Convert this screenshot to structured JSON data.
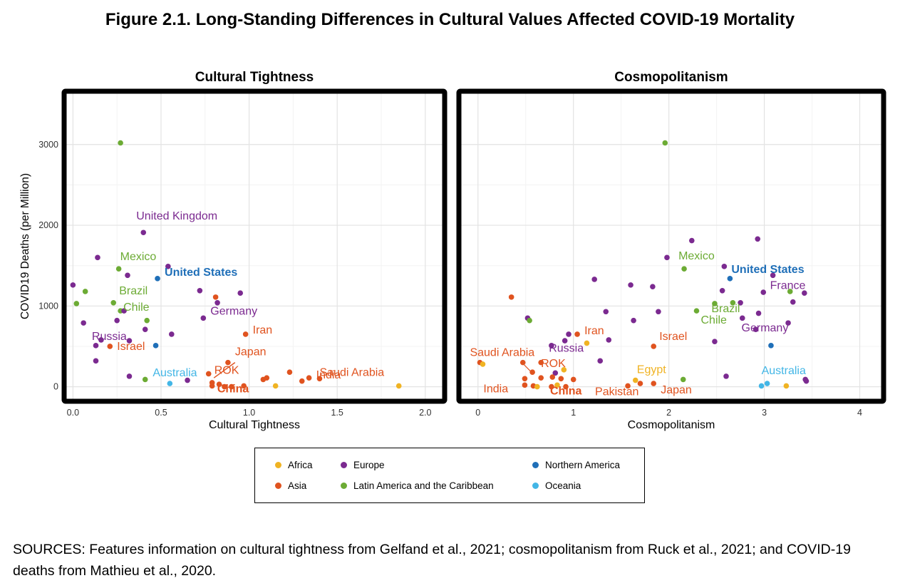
{
  "figure_title": "Figure 2.1. Long-Standing Differences in Cultural Values Affected COVID-19 Mortality",
  "sources": "SOURCES: Features information on cultural tightness from Gelfand et al., 2021; cosmopolitanism from Ruck et al., 2021; and COVID-19 deaths from Mathieu et al., 2020.",
  "colors": {
    "Africa": "#f0b323",
    "Asia": "#e0531f",
    "Europe": "#7b2a90",
    "Northern America": "#1f6fb8",
    "Latin America and the Caribbean": "#6cab34",
    "Oceania": "#43b6e6"
  },
  "legend": [
    {
      "label": "Africa",
      "color": "#f0b323"
    },
    {
      "label": "Europe",
      "color": "#7b2a90"
    },
    {
      "label": "Northern America",
      "color": "#1f6fb8"
    },
    {
      "label": "Asia",
      "color": "#e0531f"
    },
    {
      "label": "Latin America and the Caribbean",
      "color": "#6cab34"
    },
    {
      "label": "Oceania",
      "color": "#43b6e6"
    }
  ],
  "chart_data": [
    {
      "type": "scatter",
      "title": "Cultural Tightness",
      "xlabel": "Cultural Tightness",
      "ylabel": "COVID19 Deaths (per Million)",
      "xlim": [
        -0.05,
        2.11
      ],
      "ylim": [
        -180,
        3660
      ],
      "xticks": [
        0.0,
        0.5,
        1.0,
        1.5,
        2.0
      ],
      "xtick_labels": [
        "0.0",
        "0.5",
        "1.0",
        "1.5",
        "2.0"
      ],
      "yticks": [
        0,
        1000,
        2000,
        3000
      ],
      "ytick_labels": [
        "0",
        "1000",
        "2000",
        "3000"
      ],
      "grid": true,
      "points": [
        {
          "x": 0.27,
          "y": 3020,
          "region": "Latin America and the Caribbean"
        },
        {
          "x": 0.4,
          "y": 1910,
          "region": "Europe",
          "label": "United Kingdom"
        },
        {
          "x": 0.14,
          "y": 1600,
          "region": "Europe"
        },
        {
          "x": 0.26,
          "y": 1460,
          "region": "Latin America and the Caribbean",
          "label": "Mexico"
        },
        {
          "x": 0.54,
          "y": 1490,
          "region": "Europe"
        },
        {
          "x": 0.31,
          "y": 1380,
          "region": "Europe"
        },
        {
          "x": 0.48,
          "y": 1340,
          "region": "Northern America",
          "label": "United States",
          "bold": true
        },
        {
          "x": 0.0,
          "y": 1260,
          "region": "Europe"
        },
        {
          "x": 0.07,
          "y": 1180,
          "region": "Latin America and the Caribbean"
        },
        {
          "x": 0.72,
          "y": 1190,
          "region": "Europe"
        },
        {
          "x": 0.95,
          "y": 1160,
          "region": "Europe"
        },
        {
          "x": 0.81,
          "y": 1110,
          "region": "Asia"
        },
        {
          "x": 0.23,
          "y": 1040,
          "region": "Latin America and the Caribbean",
          "label": "Brazil"
        },
        {
          "x": 0.02,
          "y": 1030,
          "region": "Latin America and the Caribbean"
        },
        {
          "x": 0.82,
          "y": 1040,
          "region": "Europe"
        },
        {
          "x": 0.27,
          "y": 940,
          "region": "Latin America and the Caribbean",
          "label": "Chile"
        },
        {
          "x": 0.29,
          "y": 940,
          "region": "Europe"
        },
        {
          "x": 0.74,
          "y": 850,
          "region": "Europe",
          "label": "Germany"
        },
        {
          "x": 0.25,
          "y": 820,
          "region": "Europe"
        },
        {
          "x": 0.42,
          "y": 820,
          "region": "Latin America and the Caribbean"
        },
        {
          "x": 0.06,
          "y": 790,
          "region": "Europe"
        },
        {
          "x": 0.41,
          "y": 710,
          "region": "Europe"
        },
        {
          "x": 0.98,
          "y": 650,
          "region": "Asia",
          "label": "Iran"
        },
        {
          "x": 0.56,
          "y": 650,
          "region": "Europe"
        },
        {
          "x": 0.32,
          "y": 570,
          "region": "Europe"
        },
        {
          "x": 0.16,
          "y": 580,
          "region": "Europe",
          "label": "Russia"
        },
        {
          "x": 0.13,
          "y": 510,
          "region": "Europe"
        },
        {
          "x": 0.21,
          "y": 500,
          "region": "Asia",
          "label": "Israel"
        },
        {
          "x": 0.47,
          "y": 510,
          "region": "Northern America"
        },
        {
          "x": 0.13,
          "y": 320,
          "region": "Europe"
        },
        {
          "x": 0.88,
          "y": 300,
          "region": "Asia",
          "label": "Japan"
        },
        {
          "x": 1.4,
          "y": 100,
          "region": "Asia",
          "label": "Saudi Arabia"
        },
        {
          "x": 1.23,
          "y": 180,
          "region": "Asia"
        },
        {
          "x": 0.77,
          "y": 160,
          "region": "Asia",
          "label": "ROK"
        },
        {
          "x": 0.32,
          "y": 130,
          "region": "Europe"
        },
        {
          "x": 0.41,
          "y": 90,
          "region": "Latin America and the Caribbean"
        },
        {
          "x": 0.55,
          "y": 40,
          "region": "Oceania",
          "label": "Australia"
        },
        {
          "x": 0.65,
          "y": 80,
          "region": "Europe"
        },
        {
          "x": 1.08,
          "y": 90,
          "region": "Asia"
        },
        {
          "x": 1.1,
          "y": 110,
          "region": "Asia"
        },
        {
          "x": 1.34,
          "y": 110,
          "region": "Asia",
          "label": "India"
        },
        {
          "x": 1.3,
          "y": 70,
          "region": "Asia"
        },
        {
          "x": 0.79,
          "y": 50,
          "region": "Asia"
        },
        {
          "x": 0.79,
          "y": 10,
          "region": "Asia"
        },
        {
          "x": 0.83,
          "y": 30,
          "region": "Asia"
        },
        {
          "x": 0.86,
          "y": 0,
          "region": "Asia"
        },
        {
          "x": 0.9,
          "y": 0,
          "region": "Asia",
          "label": "China",
          "bold": true
        },
        {
          "x": 0.97,
          "y": 10,
          "region": "Asia"
        },
        {
          "x": 1.15,
          "y": 10,
          "region": "Africa"
        },
        {
          "x": 1.85,
          "y": 10,
          "region": "Africa"
        }
      ]
    },
    {
      "type": "scatter",
      "title": "Cosmopolitanism",
      "xlabel": "Cosmopolitanism",
      "ylabel": "",
      "xlim": [
        -0.2,
        4.25
      ],
      "ylim": [
        -180,
        3660
      ],
      "xticks": [
        0,
        1,
        2,
        3,
        4
      ],
      "xtick_labels": [
        "0",
        "1",
        "2",
        "3",
        "4"
      ],
      "yticks": [
        0,
        1000,
        2000,
        3000
      ],
      "ytick_labels": [],
      "grid": true,
      "points": [
        {
          "x": 1.96,
          "y": 3020,
          "region": "Latin America and the Caribbean"
        },
        {
          "x": 2.93,
          "y": 1830,
          "region": "Europe"
        },
        {
          "x": 2.24,
          "y": 1810,
          "region": "Europe"
        },
        {
          "x": 1.98,
          "y": 1600,
          "region": "Europe"
        },
        {
          "x": 2.16,
          "y": 1460,
          "region": "Latin America and the Caribbean",
          "label": "Mexico"
        },
        {
          "x": 2.58,
          "y": 1490,
          "region": "Europe"
        },
        {
          "x": 2.64,
          "y": 1340,
          "region": "Northern America",
          "label": "United States",
          "bold": true
        },
        {
          "x": 3.09,
          "y": 1380,
          "region": "Europe",
          "label": "France"
        },
        {
          "x": 1.22,
          "y": 1330,
          "region": "Europe"
        },
        {
          "x": 1.6,
          "y": 1260,
          "region": "Europe"
        },
        {
          "x": 1.83,
          "y": 1240,
          "region": "Europe"
        },
        {
          "x": 2.56,
          "y": 1190,
          "region": "Europe"
        },
        {
          "x": 2.99,
          "y": 1170,
          "region": "Europe"
        },
        {
          "x": 3.42,
          "y": 1160,
          "region": "Europe"
        },
        {
          "x": 3.27,
          "y": 1180,
          "region": "Latin America and the Caribbean"
        },
        {
          "x": 0.35,
          "y": 1110,
          "region": "Asia"
        },
        {
          "x": 2.48,
          "y": 1030,
          "region": "Latin America and the Caribbean"
        },
        {
          "x": 2.67,
          "y": 1040,
          "region": "Latin America and the Caribbean",
          "label": "Brazil"
        },
        {
          "x": 2.75,
          "y": 1040,
          "region": "Europe"
        },
        {
          "x": 3.3,
          "y": 1050,
          "region": "Europe"
        },
        {
          "x": 2.29,
          "y": 940,
          "region": "Latin America and the Caribbean",
          "label": "Chile"
        },
        {
          "x": 1.34,
          "y": 930,
          "region": "Europe"
        },
        {
          "x": 1.89,
          "y": 930,
          "region": "Europe"
        },
        {
          "x": 2.94,
          "y": 910,
          "region": "Europe"
        },
        {
          "x": 0.52,
          "y": 850,
          "region": "Europe"
        },
        {
          "x": 0.54,
          "y": 820,
          "region": "Latin America and the Caribbean"
        },
        {
          "x": 1.63,
          "y": 820,
          "region": "Europe"
        },
        {
          "x": 2.77,
          "y": 850,
          "region": "Europe"
        },
        {
          "x": 3.25,
          "y": 790,
          "region": "Europe"
        },
        {
          "x": 2.91,
          "y": 710,
          "region": "Europe",
          "label": "Germany"
        },
        {
          "x": 0.95,
          "y": 650,
          "region": "Europe"
        },
        {
          "x": 1.04,
          "y": 650,
          "region": "Asia",
          "label": "Iran"
        },
        {
          "x": 0.91,
          "y": 570,
          "region": "Europe"
        },
        {
          "x": 1.37,
          "y": 580,
          "region": "Europe"
        },
        {
          "x": 2.48,
          "y": 560,
          "region": "Europe"
        },
        {
          "x": 1.14,
          "y": 540,
          "region": "Africa"
        },
        {
          "x": 0.77,
          "y": 510,
          "region": "Europe"
        },
        {
          "x": 1.84,
          "y": 500,
          "region": "Asia",
          "label": "Israel"
        },
        {
          "x": 3.07,
          "y": 510,
          "region": "Northern America"
        },
        {
          "x": 1.28,
          "y": 320,
          "region": "Europe",
          "label": "Russia"
        },
        {
          "x": 0.02,
          "y": 300,
          "region": "Asia",
          "label": "Saudi Arabia"
        },
        {
          "x": 0.05,
          "y": 280,
          "region": "Africa"
        },
        {
          "x": 0.47,
          "y": 300,
          "region": "Asia"
        },
        {
          "x": 0.66,
          "y": 300,
          "region": "Asia"
        },
        {
          "x": 0.57,
          "y": 180,
          "region": "Asia",
          "label": "ROK"
        },
        {
          "x": 0.81,
          "y": 170,
          "region": "Europe"
        },
        {
          "x": 0.9,
          "y": 210,
          "region": "Africa"
        },
        {
          "x": 2.6,
          "y": 130,
          "region": "Europe"
        },
        {
          "x": 1.65,
          "y": 80,
          "region": "Africa",
          "label": "Egypt"
        },
        {
          "x": 2.15,
          "y": 90,
          "region": "Latin America and the Caribbean"
        },
        {
          "x": 0.49,
          "y": 100,
          "region": "Asia"
        },
        {
          "x": 0.66,
          "y": 110,
          "region": "Asia"
        },
        {
          "x": 0.78,
          "y": 120,
          "region": "Asia"
        },
        {
          "x": 0.87,
          "y": 100,
          "region": "Asia"
        },
        {
          "x": 1.0,
          "y": 90,
          "region": "Asia"
        },
        {
          "x": 0.49,
          "y": 20,
          "region": "Asia",
          "label": "India"
        },
        {
          "x": 0.58,
          "y": 10,
          "region": "Asia"
        },
        {
          "x": 0.62,
          "y": 0,
          "region": "Africa"
        },
        {
          "x": 0.77,
          "y": 0,
          "region": "Asia"
        },
        {
          "x": 0.83,
          "y": 20,
          "region": "Africa"
        },
        {
          "x": 0.92,
          "y": 0,
          "region": "Asia",
          "label": "China",
          "bold": true
        },
        {
          "x": 1.57,
          "y": 10,
          "region": "Asia",
          "label": "Pakistan"
        },
        {
          "x": 1.7,
          "y": 40,
          "region": "Asia"
        },
        {
          "x": 1.84,
          "y": 40,
          "region": "Asia",
          "label": "Japan"
        },
        {
          "x": 3.03,
          "y": 40,
          "region": "Oceania",
          "label": "Australia"
        },
        {
          "x": 2.97,
          "y": 10,
          "region": "Oceania"
        },
        {
          "x": 3.23,
          "y": 10,
          "region": "Africa"
        },
        {
          "x": 3.43,
          "y": 90,
          "region": "Europe"
        },
        {
          "x": 3.44,
          "y": 70,
          "region": "Europe"
        }
      ]
    }
  ]
}
